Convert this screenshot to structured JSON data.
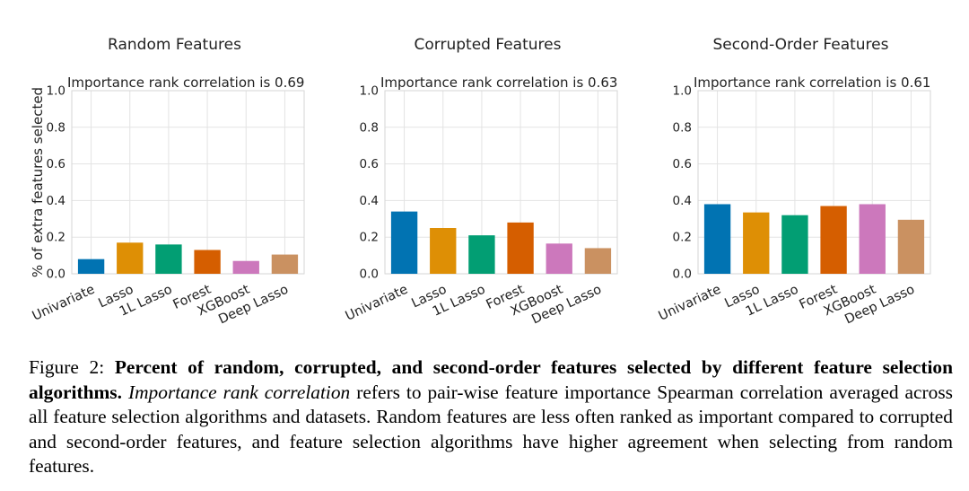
{
  "chart_data": [
    {
      "type": "bar",
      "title": "Random Features",
      "subtitle": "Importance rank correlation is 0.69",
      "ylabel": "% of extra features selected",
      "xlabel": "",
      "ylim": [
        0,
        1.0
      ],
      "yticks": [
        "0.0",
        "0.2",
        "0.4",
        "0.6",
        "0.8",
        "1.0"
      ],
      "grid": true,
      "categories": [
        "Univariate",
        "Lasso",
        "1L Lasso",
        "Forest",
        "XGBoost",
        "Deep Lasso"
      ],
      "values": [
        0.08,
        0.17,
        0.16,
        0.13,
        0.07,
        0.105
      ]
    },
    {
      "type": "bar",
      "title": "Corrupted Features",
      "subtitle": "Importance rank correlation is 0.63",
      "ylabel": "",
      "xlabel": "",
      "ylim": [
        0,
        1.0
      ],
      "yticks": [
        "0.0",
        "0.2",
        "0.4",
        "0.6",
        "0.8",
        "1.0"
      ],
      "grid": true,
      "categories": [
        "Univariate",
        "Lasso",
        "1L Lasso",
        "Forest",
        "XGBoost",
        "Deep Lasso"
      ],
      "values": [
        0.34,
        0.25,
        0.21,
        0.28,
        0.165,
        0.14
      ]
    },
    {
      "type": "bar",
      "title": "Second-Order Features",
      "subtitle": "Importance rank correlation is 0.61",
      "ylabel": "",
      "xlabel": "",
      "ylim": [
        0,
        1.0
      ],
      "yticks": [
        "0.0",
        "0.2",
        "0.4",
        "0.6",
        "0.8",
        "1.0"
      ],
      "grid": true,
      "categories": [
        "Univariate",
        "Lasso",
        "1L Lasso",
        "Forest",
        "XGBoost",
        "Deep Lasso"
      ],
      "values": [
        0.38,
        0.335,
        0.32,
        0.37,
        0.38,
        0.295
      ]
    }
  ],
  "colors": [
    "#0173b2",
    "#de8f05",
    "#029e73",
    "#d55e00",
    "#cc78bc",
    "#ca9161"
  ],
  "caption": {
    "label": "Figure 2: ",
    "bold": "Percent of random, corrupted, and second-order features selected by different feature selection algorithms.",
    "italic": "Importance rank correlation",
    "rest": " refers to pair-wise feature importance Spearman correlation averaged across all feature selection algorithms and datasets. Random features are less often ranked as important compared to corrupted and second-order features, and feature selection algorithms have higher agreement when selecting from random features."
  }
}
